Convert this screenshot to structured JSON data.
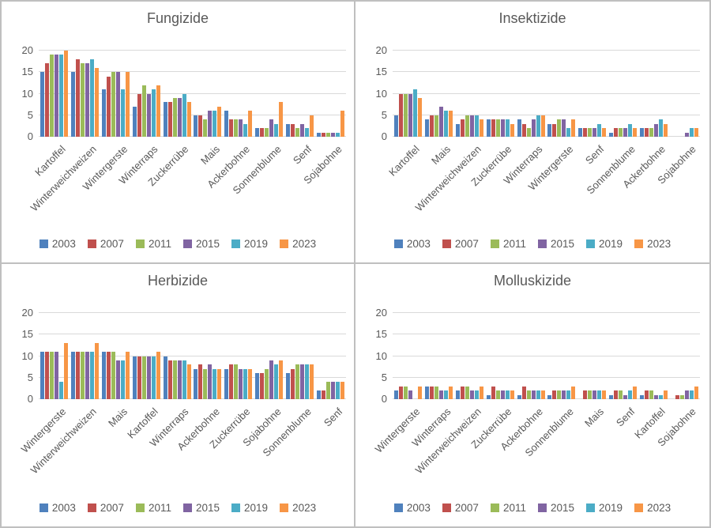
{
  "frame": {
    "background": "#ffffff",
    "border_color": "#bfbfbf",
    "text_color": "#595959",
    "gridline_color": "#d9d9d9"
  },
  "years": [
    "2003",
    "2007",
    "2011",
    "2015",
    "2019",
    "2023"
  ],
  "series_colors": {
    "2003": "#4f81bd",
    "2007": "#c0504d",
    "2011": "#9bbb59",
    "2015": "#8064a2",
    "2019": "#4bacc6",
    "2023": "#f79646"
  },
  "chart_data": [
    {
      "type": "bar",
      "title": "Fungizide",
      "categories": [
        "Kartoffel",
        "Winterweichweizen",
        "Wintergerste",
        "Winterraps",
        "Zuckerrübe",
        "Mais",
        "Ackerbohne",
        "Sonnenblume",
        "Senf",
        "Sojabohne"
      ],
      "series": [
        {
          "name": "2003",
          "color": "#4f81bd",
          "values": [
            15,
            15,
            11,
            7,
            8,
            5,
            6,
            2,
            3,
            1
          ]
        },
        {
          "name": "2007",
          "color": "#c0504d",
          "values": [
            17,
            18,
            14,
            10,
            8,
            5,
            4,
            2,
            3,
            1
          ]
        },
        {
          "name": "2011",
          "color": "#9bbb59",
          "values": [
            19,
            17,
            15,
            12,
            9,
            4,
            4,
            2,
            2,
            1
          ]
        },
        {
          "name": "2015",
          "color": "#8064a2",
          "values": [
            19,
            17,
            15,
            10,
            9,
            6,
            4,
            4,
            3,
            1
          ]
        },
        {
          "name": "2019",
          "color": "#4bacc6",
          "values": [
            19,
            18,
            11,
            11,
            10,
            6,
            3,
            3,
            2,
            1
          ]
        },
        {
          "name": "2023",
          "color": "#f79646",
          "values": [
            20,
            16,
            15,
            12,
            8,
            7,
            6,
            8,
            5,
            6
          ]
        }
      ],
      "ylim": [
        0,
        20
      ],
      "yticks": [
        0,
        5,
        10,
        15,
        20
      ],
      "grid": true,
      "legend_position": "bottom"
    },
    {
      "type": "bar",
      "title": "Insektizide",
      "categories": [
        "Kartoffel",
        "Mais",
        "Winterweichweizen",
        "Zuckerrübe",
        "Winterraps",
        "Wintergerste",
        "Senf",
        "Sonnenblume",
        "Ackerbohne",
        "Sojabohne"
      ],
      "series": [
        {
          "name": "2003",
          "color": "#4f81bd",
          "values": [
            5,
            4,
            3,
            4,
            4,
            3,
            2,
            1,
            2,
            0
          ]
        },
        {
          "name": "2007",
          "color": "#c0504d",
          "values": [
            10,
            5,
            4,
            4,
            3,
            3,
            2,
            2,
            2,
            0
          ]
        },
        {
          "name": "2011",
          "color": "#9bbb59",
          "values": [
            10,
            5,
            5,
            4,
            2,
            4,
            2,
            2,
            2,
            0
          ]
        },
        {
          "name": "2015",
          "color": "#8064a2",
          "values": [
            10,
            7,
            5,
            4,
            4,
            4,
            2,
            2,
            3,
            1
          ]
        },
        {
          "name": "2019",
          "color": "#4bacc6",
          "values": [
            11,
            6,
            5,
            4,
            5,
            2,
            3,
            3,
            4,
            2
          ]
        },
        {
          "name": "2023",
          "color": "#f79646",
          "values": [
            9,
            6,
            4,
            3,
            5,
            4,
            2,
            2,
            3,
            2
          ]
        }
      ],
      "ylim": [
        0,
        20
      ],
      "yticks": [
        0,
        5,
        10,
        15,
        20
      ],
      "grid": true,
      "legend_position": "bottom"
    },
    {
      "type": "bar",
      "title": "Herbizide",
      "categories": [
        "Wintergerste",
        "Winterweichweizen",
        "Mais",
        "Kartoffel",
        "Winterraps",
        "Ackerbohne",
        "Zuckerrübe",
        "Sojabohne",
        "Sonnenblume",
        "Senf"
      ],
      "series": [
        {
          "name": "2003",
          "color": "#4f81bd",
          "values": [
            11,
            11,
            11,
            10,
            10,
            7,
            7,
            6,
            6,
            2
          ]
        },
        {
          "name": "2007",
          "color": "#c0504d",
          "values": [
            11,
            11,
            11,
            10,
            9,
            8,
            8,
            6,
            7,
            2
          ]
        },
        {
          "name": "2011",
          "color": "#9bbb59",
          "values": [
            11,
            11,
            11,
            10,
            9,
            7,
            8,
            7,
            8,
            4
          ]
        },
        {
          "name": "2015",
          "color": "#8064a2",
          "values": [
            11,
            11,
            9,
            10,
            9,
            8,
            7,
            9,
            8,
            4
          ]
        },
        {
          "name": "2019",
          "color": "#4bacc6",
          "values": [
            4,
            11,
            9,
            10,
            9,
            7,
            7,
            8,
            8,
            4
          ]
        },
        {
          "name": "2023",
          "color": "#f79646",
          "values": [
            13,
            13,
            11,
            11,
            8,
            7,
            7,
            9,
            8,
            4
          ]
        }
      ],
      "ylim": [
        0,
        20
      ],
      "yticks": [
        0,
        5,
        10,
        15,
        20
      ],
      "grid": true,
      "legend_position": "bottom"
    },
    {
      "type": "bar",
      "title": "Molluskizide",
      "categories": [
        "Wintergerste",
        "Winterraps",
        "Winterweichweizen",
        "Zuckerrübe",
        "Ackerbohne",
        "Sonnenblume",
        "Mais",
        "Senf",
        "Kartoffel",
        "Sojabohne"
      ],
      "series": [
        {
          "name": "2003",
          "color": "#4f81bd",
          "values": [
            2,
            3,
            2,
            1,
            1,
            1,
            0,
            1,
            1,
            0
          ]
        },
        {
          "name": "2007",
          "color": "#c0504d",
          "values": [
            3,
            3,
            3,
            3,
            3,
            2,
            2,
            2,
            2,
            1
          ]
        },
        {
          "name": "2011",
          "color": "#9bbb59",
          "values": [
            3,
            3,
            3,
            2,
            2,
            2,
            2,
            2,
            2,
            1
          ]
        },
        {
          "name": "2015",
          "color": "#8064a2",
          "values": [
            2,
            2,
            2,
            2,
            2,
            2,
            2,
            1,
            1,
            2
          ]
        },
        {
          "name": "2019",
          "color": "#4bacc6",
          "values": [
            0,
            2,
            2,
            2,
            2,
            2,
            2,
            2,
            1,
            2
          ]
        },
        {
          "name": "2023",
          "color": "#f79646",
          "values": [
            3,
            3,
            3,
            2,
            2,
            3,
            2,
            3,
            2,
            3
          ]
        }
      ],
      "ylim": [
        0,
        20
      ],
      "yticks": [
        0,
        5,
        10,
        15,
        20
      ],
      "grid": true,
      "legend_position": "bottom"
    }
  ]
}
